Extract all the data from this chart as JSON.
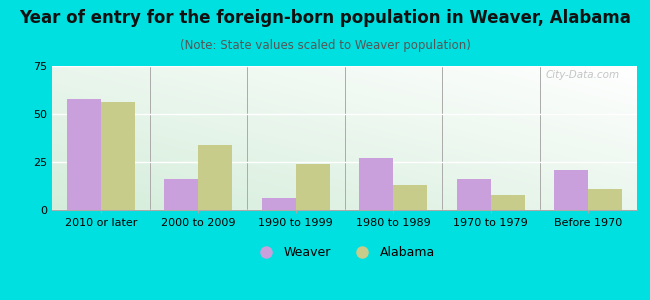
{
  "title": "Year of entry for the foreign-born population in Weaver, Alabama",
  "subtitle": "(Note: State values scaled to Weaver population)",
  "categories": [
    "2010 or later",
    "2000 to 2009",
    "1990 to 1999",
    "1980 to 1989",
    "1970 to 1979",
    "Before 1970"
  ],
  "weaver_values": [
    58,
    16,
    6,
    27,
    16,
    21
  ],
  "alabama_values": [
    56,
    34,
    24,
    13,
    8,
    11
  ],
  "weaver_color": "#c9a0dc",
  "alabama_color": "#c8cc8a",
  "background_color": "#00e0e0",
  "ylim": [
    0,
    75
  ],
  "yticks": [
    0,
    25,
    50,
    75
  ],
  "bar_width": 0.35,
  "title_fontsize": 12,
  "subtitle_fontsize": 8.5,
  "tick_fontsize": 8,
  "legend_fontsize": 9,
  "watermark": "City-Data.com"
}
